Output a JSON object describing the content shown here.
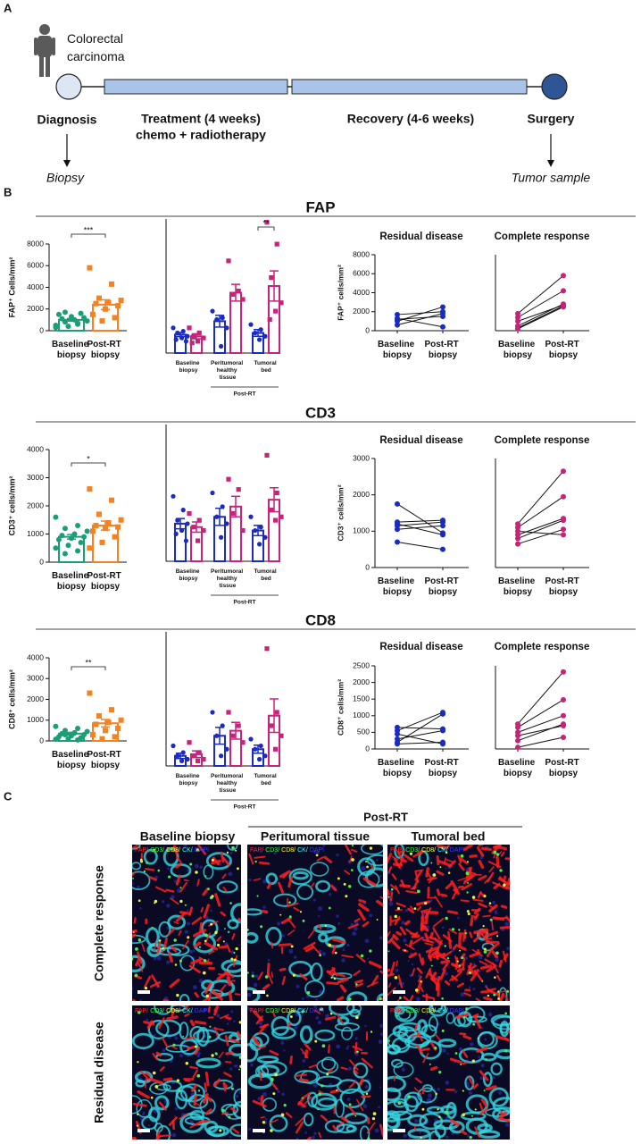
{
  "panel_a": {
    "label": "A",
    "patient": "Colorectal carcinoma",
    "stages": [
      {
        "name": "Diagnosis",
        "sample": "Biopsy"
      },
      {
        "name": "Treatment (4 weeks)",
        "detail": "chemo + radiotherapy"
      },
      {
        "name": "Recovery (4-6 weeks)"
      },
      {
        "name": "Surgery",
        "sample": "Tumor sample"
      }
    ]
  },
  "panel_b": {
    "label": "B",
    "row_titles": [
      "FAP",
      "CD3",
      "CD8"
    ]
  },
  "chart_data": [
    {
      "type": "dotbar",
      "categories": [
        "Baseline biopsy",
        "Post-RT biopsy"
      ],
      "colors": [
        "#1b9e77",
        "#f58220"
      ],
      "markers": [
        "circle",
        "square"
      ],
      "values": [
        1000,
        2400
      ],
      "errors": [
        120,
        450
      ],
      "points": [
        [
          500,
          700,
          800,
          900,
          1000,
          1100,
          1200,
          1300,
          1500,
          1600,
          400,
          300,
          600,
          1700
        ],
        [
          5800,
          4300,
          3000,
          2800,
          2600,
          2500,
          2300,
          2000,
          1500,
          1200,
          900
        ]
      ],
      "ylim": [
        0,
        8000
      ],
      "yticks": [
        0,
        2000,
        4000,
        6000,
        8000
      ],
      "ylabel": "FAP⁺ Cells/mm²",
      "significance": "***"
    },
    {
      "type": "groupedbar",
      "categories": [
        "Baseline biopsy",
        "Peritumoral healthy tissue",
        "Tumoral bed"
      ],
      "group_label": "Post-RT",
      "ylim": [
        0,
        8000
      ],
      "series": [
        {
          "color": "#1a2bc0",
          "marker": "circle",
          "values": [
            1100,
            1900,
            1200
          ],
          "errors": [
            120,
            350,
            200
          ],
          "points": [
            [
              1500,
              1300,
              1200,
              1000,
              900,
              800,
              700
            ],
            [
              2500,
              2100,
              2000,
              1500,
              400
            ],
            [
              1700,
              1400,
              1200,
              1000,
              800
            ]
          ]
        },
        {
          "color": "#c8237a",
          "marker": "square",
          "values": [
            1000,
            3600,
            4000
          ],
          "errors": [
            150,
            500,
            900
          ],
          "points": [
            [
              1500,
              1200,
              1000,
              900,
              700,
              600
            ],
            [
              5500,
              3700,
              3500,
              3200
            ],
            [
              7800,
              6500,
              4500,
              3000,
              2500,
              2000
            ]
          ]
        }
      ],
      "significance": [
        null,
        null,
        "**"
      ]
    },
    {
      "type": "paired",
      "title": "Residual disease",
      "categories": [
        "Baseline biopsy",
        "Post-RT biopsy"
      ],
      "color": "#1a2bc0",
      "ylim": [
        0,
        8000
      ],
      "yticks": [
        0,
        2000,
        4000,
        6000,
        8000
      ],
      "ylabel": "FAP⁺ cells/mm²",
      "series": [
        {
          "values": [
            1000,
            2500
          ]
        },
        {
          "values": [
            1700,
            2000
          ]
        },
        {
          "values": [
            600,
            1800
          ]
        },
        {
          "values": [
            1300,
            400
          ]
        },
        {
          "values": [
            1200,
            1500
          ]
        }
      ]
    },
    {
      "type": "paired",
      "title": "Complete response",
      "categories": [
        "Baseline biopsy",
        "Post-RT biopsy"
      ],
      "color": "#c8237a",
      "ylim": [
        0,
        8000
      ],
      "series": [
        {
          "values": [
            1800,
            5800
          ]
        },
        {
          "values": [
            1400,
            4200
          ]
        },
        {
          "values": [
            500,
            2800
          ]
        },
        {
          "values": [
            300,
            2600
          ]
        },
        {
          "values": [
            200,
            2500
          ]
        },
        {
          "values": [
            1000,
            2700
          ]
        }
      ]
    },
    {
      "type": "dotbar",
      "categories": [
        "Baseline biopsy",
        "Post-RT biopsy"
      ],
      "colors": [
        "#1b9e77",
        "#f58220"
      ],
      "markers": [
        "circle",
        "square"
      ],
      "values": [
        900,
        1300
      ],
      "errors": [
        80,
        160
      ],
      "points": [
        [
          1600,
          1300,
          1200,
          1100,
          1000,
          950,
          900,
          850,
          800,
          700,
          600,
          500,
          400,
          300
        ],
        [
          2600,
          2200,
          1700,
          1500,
          1400,
          1300,
          1250,
          1200,
          1100,
          900,
          700,
          500
        ]
      ],
      "ylim": [
        0,
        4000
      ],
      "yticks": [
        0,
        1000,
        2000,
        3000,
        4000
      ],
      "ylabel": "CD3⁺ cells/mm²",
      "significance": "*"
    },
    {
      "type": "groupedbar",
      "categories": [
        "Baseline biopsy",
        "Peritumoral healthy tissue",
        "Tumoral bed"
      ],
      "group_label": "Post-RT",
      "ylim": [
        0,
        4000
      ],
      "series": [
        {
          "color": "#1a2bc0",
          "marker": "circle",
          "values": [
            1100,
            1300,
            900
          ],
          "errors": [
            150,
            250,
            150
          ],
          "points": [
            [
              1900,
              1500,
              1200,
              1100,
              900,
              800,
              600
            ],
            [
              2000,
              1600,
              1300,
              1100,
              700
            ],
            [
              1300,
              1000,
              900,
              700,
              500
            ]
          ]
        },
        {
          "color": "#c8237a",
          "marker": "square",
          "values": [
            1000,
            1600,
            1800
          ],
          "errors": [
            150,
            300,
            350
          ],
          "points": [
            [
              1400,
              1200,
              1000,
              900,
              600
            ],
            [
              2400,
              2100,
              1400,
              900
            ],
            [
              3100,
              2000,
              1500,
              1300,
              1200
            ]
          ]
        }
      ]
    },
    {
      "type": "paired",
      "title": "Residual disease",
      "categories": [
        "Baseline biopsy",
        "Post-RT biopsy"
      ],
      "color": "#1a2bc0",
      "ylim": [
        0,
        3000
      ],
      "yticks": [
        0,
        1000,
        2000,
        3000
      ],
      "ylabel": "CD3⁺ cells/mm²",
      "series": [
        {
          "values": [
            1750,
            950
          ]
        },
        {
          "values": [
            1250,
            1300
          ]
        },
        {
          "values": [
            1150,
            1250
          ]
        },
        {
          "values": [
            1050,
            1150
          ]
        },
        {
          "values": [
            700,
            500
          ]
        },
        {
          "values": [
            1200,
            900
          ]
        }
      ]
    },
    {
      "type": "paired",
      "title": "Complete response",
      "categories": [
        "Baseline biopsy",
        "Post-RT biopsy"
      ],
      "color": "#c8237a",
      "ylim": [
        0,
        3000
      ],
      "series": [
        {
          "values": [
            1200,
            2650
          ]
        },
        {
          "values": [
            1100,
            1950
          ]
        },
        {
          "values": [
            900,
            1350
          ]
        },
        {
          "values": [
            800,
            1300
          ]
        },
        {
          "values": [
            650,
            1050
          ]
        },
        {
          "values": [
            1000,
            900
          ]
        }
      ]
    },
    {
      "type": "dotbar",
      "categories": [
        "Baseline biopsy",
        "Post-RT biopsy"
      ],
      "colors": [
        "#1b9e77",
        "#f58220"
      ],
      "markers": [
        "circle",
        "square"
      ],
      "values": [
        350,
        850
      ],
      "errors": [
        60,
        180
      ],
      "points": [
        [
          700,
          600,
          500,
          450,
          400,
          350,
          300,
          250,
          200,
          150,
          100,
          80,
          50,
          300
        ],
        [
          2300,
          1500,
          1200,
          1000,
          900,
          800,
          600,
          500,
          300,
          200,
          100
        ]
      ],
      "ylim": [
        0,
        4000
      ],
      "yticks": [
        0,
        1000,
        2000,
        3000,
        4000
      ],
      "ylabel": "CD8⁺ cells/mm²",
      "significance": "**"
    },
    {
      "type": "groupedbar",
      "categories": [
        "Baseline biopsy",
        "Peritumoral healthy tissue",
        "Tumoral bed"
      ],
      "group_label": "Post-RT",
      "ylim": [
        0,
        4000
      ],
      "series": [
        {
          "color": "#1a2bc0",
          "marker": "circle",
          "values": [
            300,
            900,
            500
          ],
          "errors": [
            80,
            250,
            120
          ],
          "points": [
            [
              600,
              400,
              300,
              200,
              150
            ],
            [
              1600,
              1200,
              900,
              500,
              300
            ],
            [
              800,
              600,
              500,
              300,
              200
            ]
          ]
        },
        {
          "color": "#c8237a",
          "marker": "square",
          "values": [
            350,
            1050,
            1500
          ],
          "errors": [
            100,
            250,
            500
          ],
          "points": [
            [
              700,
              400,
              300,
              200,
              150
            ],
            [
              1600,
              1200,
              900,
              700
            ],
            [
              3500,
              1600,
              1200,
              900,
              500
            ]
          ]
        }
      ]
    },
    {
      "type": "paired",
      "title": "Residual disease",
      "categories": [
        "Baseline biopsy",
        "Post-RT biopsy"
      ],
      "color": "#1a2bc0",
      "ylim": [
        0,
        2500
      ],
      "yticks": [
        0,
        500,
        1000,
        1500,
        2000,
        2500
      ],
      "ylabel": "CD8⁺ cells/mm²",
      "series": [
        {
          "values": [
            650,
            600
          ]
        },
        {
          "values": [
            550,
            1100
          ]
        },
        {
          "values": [
            300,
            550
          ]
        },
        {
          "values": [
            200,
            1050
          ]
        },
        {
          "values": [
            150,
            200
          ]
        },
        {
          "values": [
            450,
            150
          ]
        }
      ]
    },
    {
      "type": "paired",
      "title": "Complete response",
      "categories": [
        "Baseline biopsy",
        "Post-RT biopsy"
      ],
      "color": "#c8237a",
      "ylim": [
        0,
        2500
      ],
      "series": [
        {
          "values": [
            750,
            2320
          ]
        },
        {
          "values": [
            650,
            1480
          ]
        },
        {
          "values": [
            500,
            1000
          ]
        },
        {
          "values": [
            400,
            700
          ]
        },
        {
          "values": [
            250,
            750
          ]
        },
        {
          "values": [
            50,
            350
          ]
        }
      ]
    }
  ],
  "panel_c": {
    "label": "C",
    "group_label": "Post-RT",
    "columns": [
      "Baseline biopsy",
      "Peritumoral tissue",
      "Tumoral bed"
    ],
    "rows": [
      "Complete response",
      "Residual disease"
    ],
    "channels": [
      {
        "name": "FAP/",
        "color": "#ff2a2a"
      },
      {
        "name": "CD3/",
        "color": "#3cff3c"
      },
      {
        "name": "CD8/",
        "color": "#ffff40"
      },
      {
        "name": "CK/",
        "color": "#40ffff"
      },
      {
        "name": "DAPI",
        "color": "#3a3aff"
      }
    ]
  }
}
